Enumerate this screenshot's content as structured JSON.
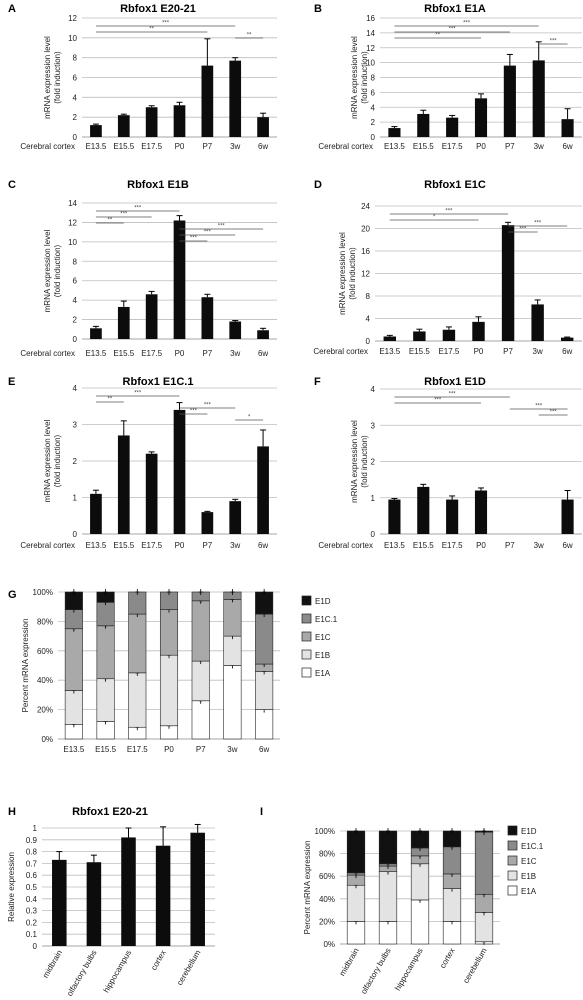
{
  "row_label": "Cerebral cortex",
  "legend_labels_G": [
    "E1D",
    "E1C.1",
    "E1C",
    "E1B",
    "E1A"
  ],
  "legend_labels_I": [
    "E1D",
    "E1C.1",
    "E1C",
    "E1B",
    "E1A"
  ],
  "stack_colors": {
    "E1A": "#ffffff",
    "E1B": "#e3e3e3",
    "E1C": "#a9a9a9",
    "E1C.1": "#8a8a8a",
    "E1D": "#111111"
  },
  "chart_data": [
    {
      "panel": "A",
      "type": "bar",
      "title": "Rbfox1 E20-21",
      "ylabel": "mRNA expression level\n(fold induction)",
      "categories": [
        "E13.5",
        "E15.5",
        "E17.5",
        "P0",
        "P7",
        "3w",
        "6w"
      ],
      "values": [
        1.2,
        2.2,
        3.0,
        3.2,
        7.2,
        7.7,
        2.0
      ],
      "errors": [
        0.1,
        0.1,
        0.15,
        0.3,
        2.7,
        0.3,
        0.4
      ],
      "yticks": [
        0,
        2,
        4,
        6,
        8,
        10,
        12
      ],
      "ylim": [
        0,
        12
      ],
      "grid": true,
      "significance": [
        {
          "from": "E13.5",
          "to": "3w",
          "label": "***"
        },
        {
          "from": "E13.5",
          "to": "P7",
          "label": "**"
        },
        {
          "from": "3w",
          "to": "6w",
          "label": "**"
        }
      ]
    },
    {
      "panel": "B",
      "type": "bar",
      "title": "Rbfox1 E1A",
      "ylabel": "mRNA expression level\n(fold induction)",
      "categories": [
        "E13.5",
        "E15.5",
        "E17.5",
        "P0",
        "P7",
        "3w",
        "6w"
      ],
      "values": [
        1.2,
        3.1,
        2.6,
        5.2,
        9.6,
        10.3,
        2.4
      ],
      "errors": [
        0.2,
        0.5,
        0.3,
        0.6,
        1.5,
        2.5,
        1.4
      ],
      "yticks": [
        0,
        2,
        4,
        6,
        8,
        10,
        12,
        14,
        16
      ],
      "ylim": [
        0,
        16
      ],
      "grid": true,
      "significance": [
        {
          "from": "E13.5",
          "to": "3w",
          "label": "***"
        },
        {
          "from": "E13.5",
          "to": "P7",
          "label": "***"
        },
        {
          "from": "E13.5",
          "to": "P0",
          "label": "**"
        },
        {
          "from": "3w",
          "to": "6w",
          "label": "***"
        }
      ]
    },
    {
      "panel": "C",
      "type": "bar",
      "title": "Rbfox1 E1B",
      "ylabel": "mRNA expression level\n(fold induction)",
      "categories": [
        "E13.5",
        "E15.5",
        "E17.5",
        "P0",
        "P7",
        "3w",
        "6w"
      ],
      "values": [
        1.1,
        3.3,
        4.6,
        12.2,
        4.3,
        1.8,
        0.9
      ],
      "errors": [
        0.2,
        0.6,
        0.3,
        0.5,
        0.3,
        0.1,
        0.2
      ],
      "yticks": [
        0,
        2,
        4,
        6,
        8,
        10,
        12,
        14
      ],
      "ylim": [
        0,
        14
      ],
      "grid": true,
      "significance": [
        {
          "from": "E13.5",
          "to": "P0",
          "label": "***"
        },
        {
          "from": "E13.5",
          "to": "E17.5",
          "label": "***"
        },
        {
          "from": "E13.5",
          "to": "E15.5",
          "label": "**"
        },
        {
          "from": "P0",
          "to": "6w",
          "label": "***"
        },
        {
          "from": "P0",
          "to": "3w",
          "label": "***"
        },
        {
          "from": "P0",
          "to": "P7",
          "label": "***"
        }
      ]
    },
    {
      "panel": "D",
      "type": "bar",
      "title": "Rbfox1 E1C",
      "ylabel": "mRNA expression level\n(fold induction)",
      "categories": [
        "E13.5",
        "E15.5",
        "E17.5",
        "P0",
        "P7",
        "3w",
        "6w"
      ],
      "values": [
        0.8,
        1.7,
        2.0,
        3.4,
        20.6,
        6.5,
        0.6
      ],
      "errors": [
        0.2,
        0.4,
        0.5,
        0.9,
        0.5,
        0.8,
        0.1
      ],
      "yticks": [
        0,
        4,
        8,
        12,
        16,
        20,
        24
      ],
      "ylim": [
        0,
        24
      ],
      "grid": true,
      "significance": [
        {
          "from": "E13.5",
          "to": "P7",
          "label": "***"
        },
        {
          "from": "E13.5",
          "to": "P0",
          "label": "*"
        },
        {
          "from": "P7",
          "to": "6w",
          "label": "***"
        },
        {
          "from": "P7",
          "to": "3w",
          "label": "***"
        }
      ]
    },
    {
      "panel": "E",
      "type": "bar",
      "title": "Rbfox1 E1C.1",
      "ylabel": "mRNA expression level\n(fold induction)",
      "categories": [
        "E13.5",
        "E15.5",
        "E17.5",
        "P0",
        "P7",
        "3w",
        "6w"
      ],
      "values": [
        1.1,
        2.7,
        2.2,
        3.4,
        0.6,
        0.9,
        2.4
      ],
      "errors": [
        0.1,
        0.4,
        0.05,
        0.2,
        0.02,
        0.05,
        0.45
      ],
      "yticks": [
        0,
        1,
        2,
        3,
        4
      ],
      "ylim": [
        0,
        4
      ],
      "grid": true,
      "significance": [
        {
          "from": "E13.5",
          "to": "P0",
          "label": "***"
        },
        {
          "from": "E13.5",
          "to": "E15.5",
          "label": "**"
        },
        {
          "from": "P0",
          "to": "3w",
          "label": "***"
        },
        {
          "from": "P0",
          "to": "P7",
          "label": "***"
        },
        {
          "from": "3w",
          "to": "6w",
          "label": "*"
        }
      ]
    },
    {
      "panel": "F",
      "type": "bar",
      "title": "Rbfox1 E1D",
      "ylabel": "mRNA expression level\n(fold induction)",
      "categories": [
        "E13.5",
        "E15.5",
        "E17.5",
        "P0",
        "P7",
        "3w",
        "6w"
      ],
      "values": [
        0.95,
        1.3,
        0.95,
        1.2,
        0.0,
        0.0,
        0.95
      ],
      "errors": [
        0.03,
        0.07,
        0.1,
        0.07,
        0,
        0,
        0.25
      ],
      "yticks": [
        0,
        1,
        2,
        3,
        4
      ],
      "ylim": [
        0,
        4
      ],
      "grid": true,
      "significance": [
        {
          "from": "E13.5",
          "to": "P7",
          "label": "***"
        },
        {
          "from": "E13.5",
          "to": "P0",
          "label": "***"
        },
        {
          "from": "P7",
          "to": "6w",
          "label": "***"
        },
        {
          "from": "3w",
          "to": "6w",
          "label": "***"
        }
      ]
    },
    {
      "panel": "G",
      "type": "bar",
      "stacked": true,
      "ylabel": "Percent mRNA expression",
      "categories": [
        "E13.5",
        "E15.5",
        "E17.5",
        "P0",
        "P7",
        "3w",
        "6w"
      ],
      "yticks": [
        "0%",
        "20%",
        "40%",
        "60%",
        "80%",
        "100%"
      ],
      "ylim": [
        0,
        100
      ],
      "series": [
        {
          "name": "E1A",
          "values": [
            10,
            12,
            8,
            9,
            26,
            50,
            20
          ]
        },
        {
          "name": "E1B",
          "values": [
            23,
            29,
            37,
            48,
            27,
            20,
            26
          ]
        },
        {
          "name": "E1C",
          "values": [
            42,
            36,
            40,
            31,
            41,
            25,
            5
          ]
        },
        {
          "name": "E1C.1",
          "values": [
            13,
            16,
            15,
            12,
            6,
            5,
            34
          ]
        },
        {
          "name": "E1D",
          "values": [
            12,
            7,
            0,
            0,
            0,
            0,
            15
          ]
        }
      ]
    },
    {
      "panel": "H",
      "type": "bar",
      "title": "Rbfox1 E20-21",
      "ylabel": "Relative expression",
      "categories": [
        "midbrain",
        "olfactory bulbs",
        "hippocampus",
        "cortex",
        "cerebellum"
      ],
      "values": [
        0.73,
        0.71,
        0.92,
        0.85,
        0.96
      ],
      "errors": [
        0.07,
        0.06,
        0.08,
        0.16,
        0.07
      ],
      "yticks": [
        0,
        0.1,
        0.2,
        0.3,
        0.4,
        0.5,
        0.6,
        0.7,
        0.8,
        0.9,
        1
      ],
      "ylim": [
        0,
        1.0
      ],
      "grid": true
    },
    {
      "panel": "I",
      "type": "bar",
      "stacked": true,
      "ylabel": "Percent mRNA expression",
      "categories": [
        "midbrain",
        "olfactory bulbs",
        "hippocampus",
        "cortex",
        "cerebellum"
      ],
      "yticks": [
        "0%",
        "20%",
        "40%",
        "60%",
        "80%",
        "100%"
      ],
      "ylim": [
        0,
        100
      ],
      "series": [
        {
          "name": "E1A",
          "values": [
            20,
            20,
            39,
            20,
            2
          ]
        },
        {
          "name": "E1B",
          "values": [
            32,
            44,
            32,
            29,
            26
          ]
        },
        {
          "name": "E1C",
          "values": [
            9,
            5,
            7,
            13,
            16
          ]
        },
        {
          "name": "E1C.1",
          "values": [
            2,
            2,
            7,
            24,
            55
          ]
        },
        {
          "name": "E1D",
          "values": [
            37,
            29,
            15,
            14,
            1
          ]
        }
      ]
    }
  ]
}
